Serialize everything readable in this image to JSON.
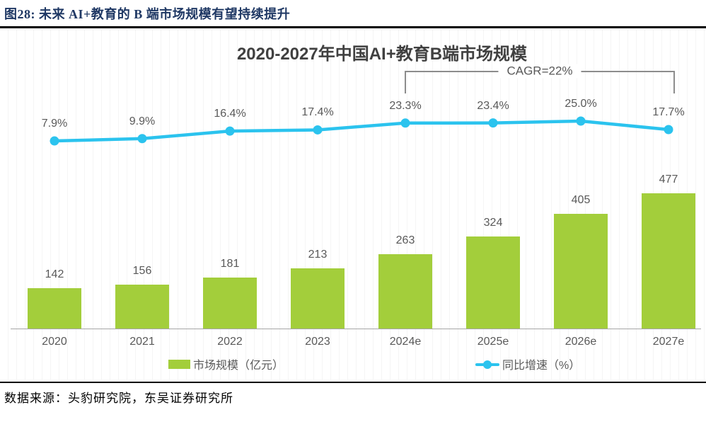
{
  "header": {
    "caption": "图28:  未来 AI+教育的 B 端市场规模有望持续提升"
  },
  "footer": {
    "source": "数据来源：头豹研究院，东吴证券研究所"
  },
  "colors": {
    "bar_green": "#a3ce3b",
    "line_cyan": "#2bc3ee",
    "label_gray": "#595959",
    "header_navy": "#1F3864",
    "axis_gray": "#a6a6a6"
  },
  "chart_data": {
    "type": "bar",
    "subtype": "dual-axis bar+line combo",
    "title": "2020-2027年中国AI+教育B端市场规模",
    "categories": [
      "2020",
      "2021",
      "2022",
      "2023",
      "2024e",
      "2025e",
      "2026e",
      "2027e"
    ],
    "series": [
      {
        "name": "市场规模（亿元）",
        "type": "bar",
        "color": "#a3ce3b",
        "axis": "left",
        "values": [
          142,
          156,
          181,
          213,
          263,
          324,
          405,
          477
        ],
        "labels": [
          "142",
          "156",
          "181",
          "213",
          "263",
          "324",
          "405",
          "477"
        ]
      },
      {
        "name": "同比增速（%）",
        "type": "line",
        "color": "#2bc3ee",
        "axis": "right",
        "values": [
          7.9,
          9.9,
          16.4,
          17.4,
          23.3,
          23.4,
          25.0,
          17.7
        ],
        "labels": [
          "7.9%",
          "9.9%",
          "16.4%",
          "17.4%",
          "23.3%",
          "23.4%",
          "25.0%",
          "17.7%"
        ]
      }
    ],
    "annotation": {
      "text": "CAGR=22%",
      "span_categories": [
        "2024e",
        "2027e"
      ]
    },
    "xlabel": "",
    "ylabel": "",
    "ylim_left": [
      0,
      500
    ],
    "ylim_right_visible_range": [
      7.9,
      25.0
    ],
    "grid": false,
    "axis_lines": "bottom-only",
    "legend_position": "bottom"
  }
}
